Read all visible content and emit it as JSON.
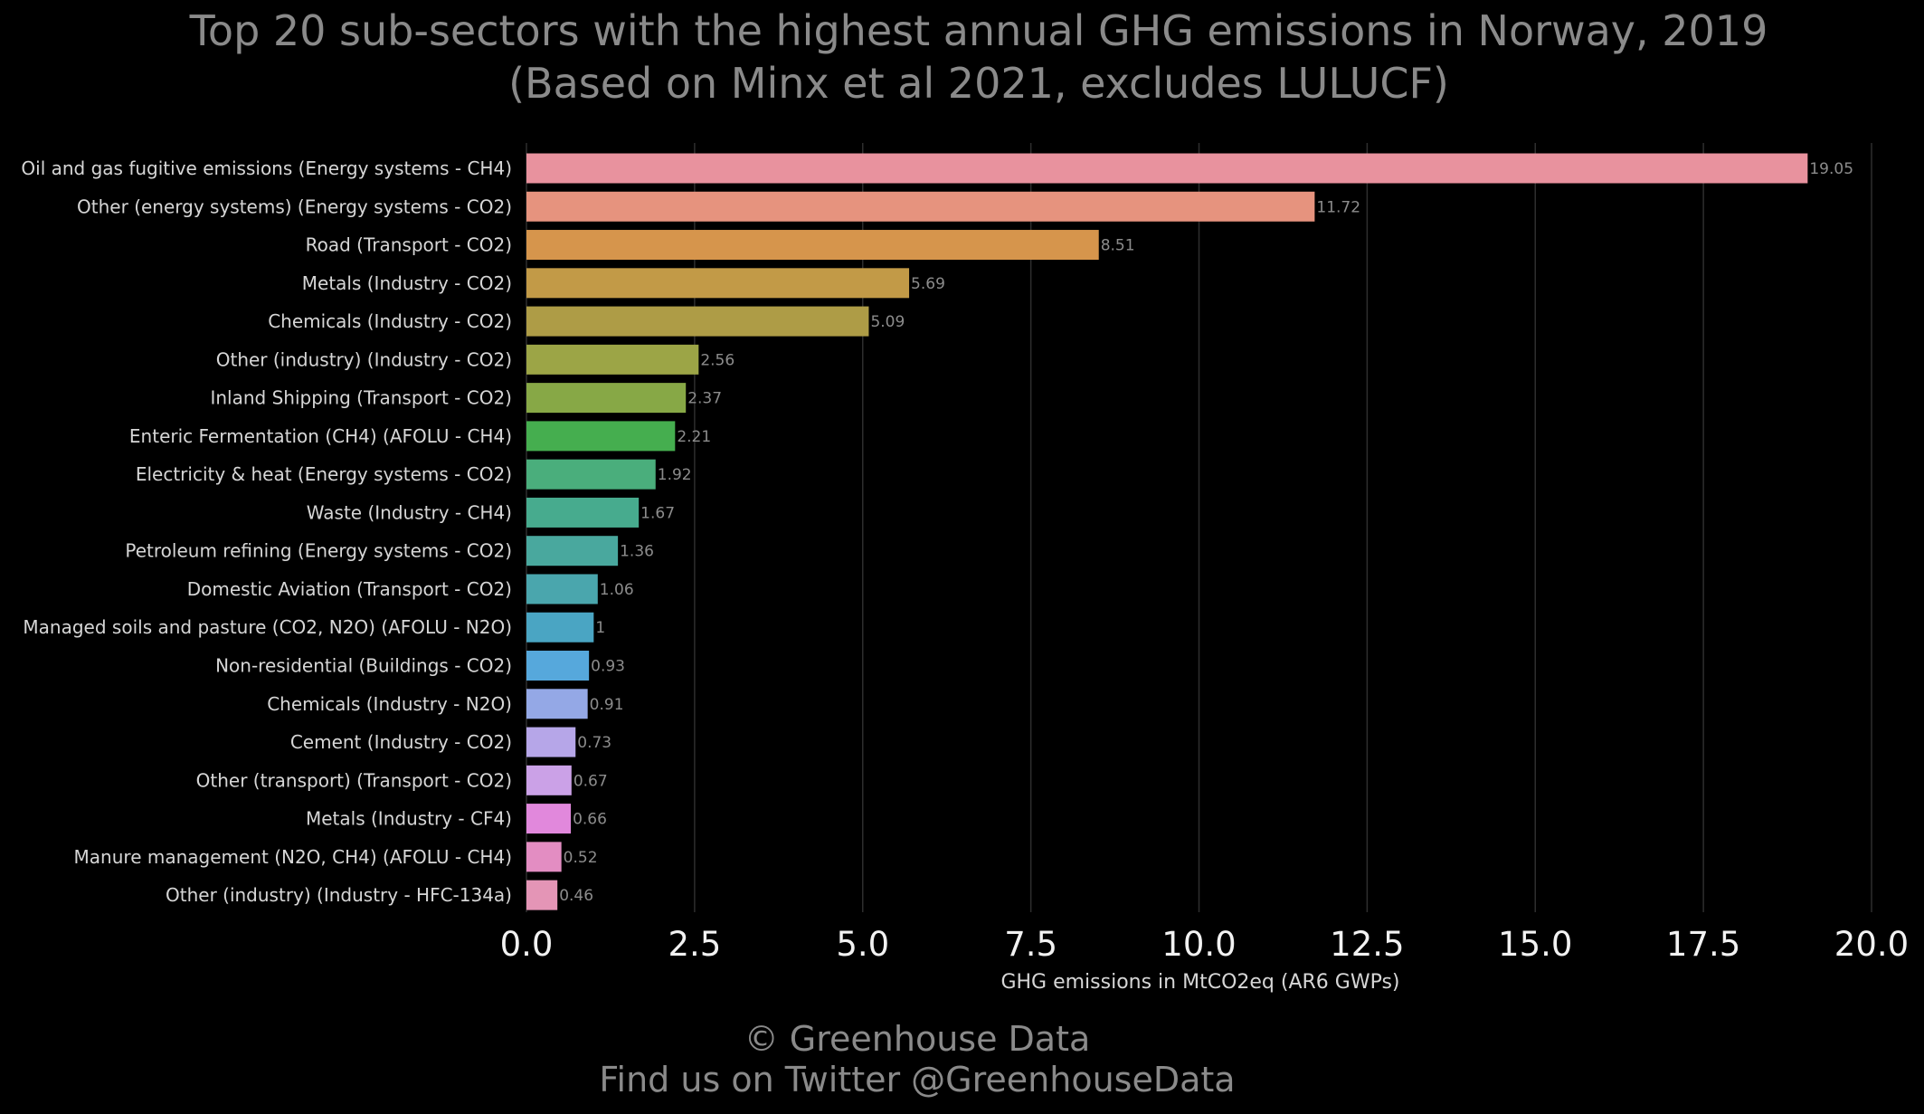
{
  "chart_data": {
    "type": "bar",
    "orientation": "horizontal",
    "title": "Top 20 sub-sectors with the highest annual GHG emissions in Norway, 2019",
    "subtitle": "(Based on Minx et al 2021, excludes LULUCF)",
    "xlabel": "GHG emissions in MtCO2eq (AR6 GWPs)",
    "ylabel": "",
    "xlim": [
      0,
      20
    ],
    "xticks": [
      "0.0",
      "2.5",
      "5.0",
      "7.5",
      "10.0",
      "12.5",
      "15.0",
      "17.5",
      "20.0"
    ],
    "grid": "vertical",
    "categories": [
      "Oil and gas fugitive emissions (Energy systems - CH4)",
      "Other (energy systems) (Energy systems - CO2)",
      "Road (Transport - CO2)",
      "Metals (Industry - CO2)",
      "Chemicals (Industry - CO2)",
      "Other (industry) (Industry - CO2)",
      "Inland Shipping (Transport - CO2)",
      "Enteric Fermentation (CH4) (AFOLU - CH4)",
      "Electricity & heat (Energy systems - CO2)",
      "Waste (Industry - CH4)",
      "Petroleum refining (Energy systems - CO2)",
      "Domestic Aviation (Transport - CO2)",
      "Managed soils and pasture (CO2, N2O) (AFOLU - N2O)",
      "Non-residential (Buildings - CO2)",
      "Chemicals (Industry - N2O)",
      "Cement (Industry - CO2)",
      "Other (transport) (Transport - CO2)",
      "Metals (Industry - CF4)",
      "Manure management (N2O, CH4) (AFOLU - CH4)",
      "Other (industry) (Industry - HFC-134a)"
    ],
    "values": [
      19.05,
      11.72,
      8.51,
      5.69,
      5.09,
      2.56,
      2.37,
      2.21,
      1.92,
      1.67,
      1.36,
      1.06,
      1,
      0.93,
      0.91,
      0.73,
      0.67,
      0.66,
      0.52,
      0.46
    ],
    "value_labels": [
      "19.05",
      "11.72",
      "8.51",
      "5.69",
      "5.09",
      "2.56",
      "2.37",
      "2.21",
      "1.92",
      "1.67",
      "1.36",
      "1.06",
      "1",
      "0.93",
      "0.91",
      "0.73",
      "0.67",
      "0.66",
      "0.52",
      "0.46"
    ],
    "colors": [
      "#e8929e",
      "#e6937e",
      "#d6954c",
      "#c29a47",
      "#ae9c46",
      "#9ca546",
      "#87a846",
      "#45ae4f",
      "#4aae7c",
      "#47ab8e",
      "#49a89e",
      "#4aa6ad",
      "#4aa5c3",
      "#56a8dc",
      "#94a8e6",
      "#b6a6e8",
      "#cba1e7",
      "#e188dc",
      "#e38dc2",
      "#e495b6"
    ]
  },
  "footer": {
    "copyright": "© Greenhouse Data",
    "twitter": "Find us on Twitter @GreenhouseData"
  }
}
